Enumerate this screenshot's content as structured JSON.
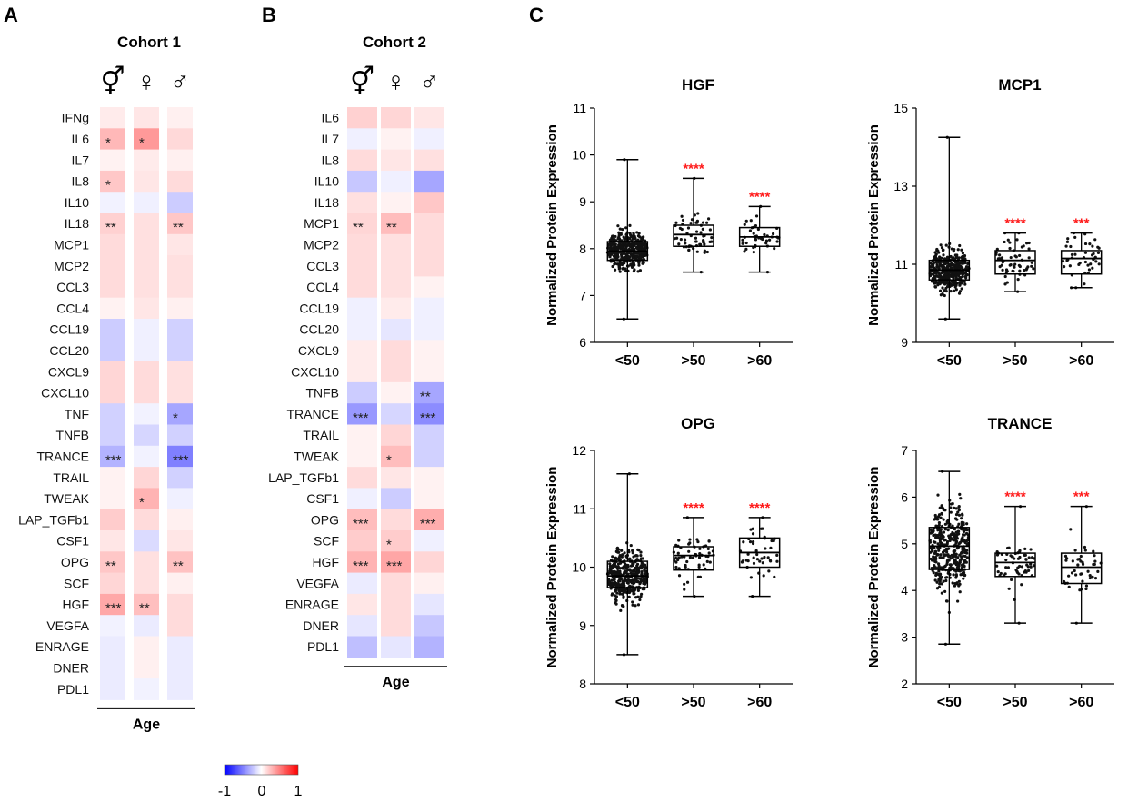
{
  "panels": [
    {
      "letter": "A"
    },
    {
      "letter": "B"
    },
    {
      "letter": "C"
    }
  ],
  "colorbar": {
    "ticks": [
      "-1",
      "0",
      "1"
    ],
    "min_color": "#0000ff",
    "mid_color": "#ffffff",
    "max_color": "#ff0000"
  },
  "chart_data": [
    {
      "type": "heatmap",
      "panel": "A",
      "title": "Cohort 1",
      "columns": [
        "⚥",
        "♀",
        "♂"
      ],
      "xlabel": "Age",
      "rows": [
        "IFNg",
        "IL6",
        "IL7",
        "IL8",
        "IL10",
        "IL18",
        "MCP1",
        "MCP2",
        "CCL3",
        "CCL4",
        "CCL19",
        "CCL20",
        "CXCL9",
        "CXCL10",
        "TNF",
        "TNFB",
        "TRANCE",
        "TRAIL",
        "TWEAK",
        "LAP_TGFb1",
        "CSF1",
        "OPG",
        "SCF",
        "HGF",
        "VEGFA",
        "ENRAGE",
        "DNER",
        "PDL1"
      ],
      "values": [
        [
          0.08,
          0.1,
          0.06
        ],
        [
          0.28,
          0.4,
          0.15
        ],
        [
          0.05,
          0.08,
          0.06
        ],
        [
          0.22,
          0.1,
          0.14
        ],
        [
          -0.05,
          -0.06,
          -0.2
        ],
        [
          0.18,
          0.12,
          0.22
        ],
        [
          0.14,
          0.12,
          0.1
        ],
        [
          0.14,
          0.12,
          0.12
        ],
        [
          0.14,
          0.12,
          0.12
        ],
        [
          0.05,
          0.1,
          0.06
        ],
        [
          -0.2,
          -0.06,
          -0.18
        ],
        [
          -0.2,
          -0.06,
          -0.18
        ],
        [
          0.16,
          0.14,
          0.12
        ],
        [
          0.16,
          0.14,
          0.12
        ],
        [
          -0.18,
          -0.05,
          -0.35
        ],
        [
          -0.18,
          -0.16,
          -0.18
        ],
        [
          -0.3,
          -0.05,
          -0.5
        ],
        [
          0.05,
          0.16,
          -0.18
        ],
        [
          0.05,
          0.3,
          -0.06
        ],
        [
          0.2,
          0.14,
          0.06
        ],
        [
          0.1,
          -0.14,
          0.1
        ],
        [
          0.22,
          0.12,
          0.24
        ],
        [
          0.16,
          0.12,
          0.06
        ],
        [
          0.34,
          0.25,
          0.14
        ],
        [
          -0.05,
          -0.08,
          0.14
        ],
        [
          -0.08,
          0.06,
          -0.08
        ],
        [
          -0.08,
          0.06,
          -0.08
        ],
        [
          -0.08,
          -0.05,
          -0.08
        ]
      ],
      "significance": [
        [
          "",
          "",
          ""
        ],
        [
          "*",
          "*",
          ""
        ],
        [
          "",
          "",
          ""
        ],
        [
          "*",
          "",
          ""
        ],
        [
          "",
          "",
          ""
        ],
        [
          "**",
          "",
          "**"
        ],
        [
          "",
          "",
          ""
        ],
        [
          "",
          "",
          ""
        ],
        [
          "",
          "",
          ""
        ],
        [
          "",
          "",
          ""
        ],
        [
          "",
          "",
          ""
        ],
        [
          "",
          "",
          ""
        ],
        [
          "",
          "",
          ""
        ],
        [
          "",
          "",
          ""
        ],
        [
          "",
          "",
          "*"
        ],
        [
          "",
          "",
          ""
        ],
        [
          "***",
          "",
          "***"
        ],
        [
          "",
          "",
          ""
        ],
        [
          "",
          "*",
          ""
        ],
        [
          "",
          "",
          ""
        ],
        [
          "",
          "",
          ""
        ],
        [
          "**",
          "",
          "**"
        ],
        [
          "",
          "",
          ""
        ],
        [
          "***",
          "**",
          ""
        ],
        [
          "",
          "",
          ""
        ],
        [
          "",
          "",
          ""
        ],
        [
          "",
          "",
          ""
        ],
        [
          "",
          "",
          ""
        ]
      ],
      "vmin": -1,
      "vmax": 1
    },
    {
      "type": "heatmap",
      "panel": "B",
      "title": "Cohort 2",
      "columns": [
        "⚥",
        "♀",
        "♂"
      ],
      "xlabel": "Age",
      "rows": [
        "IL6",
        "IL7",
        "IL8",
        "IL10",
        "IL18",
        "MCP1",
        "MCP2",
        "CCL3",
        "CCL4",
        "CCL19",
        "CCL20",
        "CXCL9",
        "CXCL10",
        "TNFB",
        "TRANCE",
        "TRAIL",
        "TWEAK",
        "LAP_TGFb1",
        "CSF1",
        "OPG",
        "SCF",
        "HGF",
        "VEGFA",
        "ENRAGE",
        "DNER",
        "PDL1"
      ],
      "values": [
        [
          0.18,
          0.16,
          0.1
        ],
        [
          -0.06,
          0.05,
          -0.06
        ],
        [
          0.14,
          0.1,
          0.12
        ],
        [
          -0.22,
          -0.06,
          -0.35
        ],
        [
          0.12,
          0.05,
          0.22
        ],
        [
          0.16,
          0.26,
          0.14
        ],
        [
          0.14,
          0.12,
          0.14
        ],
        [
          0.14,
          0.12,
          0.14
        ],
        [
          0.14,
          0.12,
          0.05
        ],
        [
          -0.06,
          0.08,
          -0.06
        ],
        [
          -0.06,
          -0.1,
          -0.06
        ],
        [
          0.08,
          0.14,
          0.05
        ],
        [
          0.08,
          0.14,
          0.05
        ],
        [
          -0.2,
          0.05,
          -0.35
        ],
        [
          -0.4,
          -0.16,
          -0.45
        ],
        [
          0.05,
          0.16,
          -0.18
        ],
        [
          0.05,
          0.26,
          -0.18
        ],
        [
          0.14,
          0.1,
          0.05
        ],
        [
          -0.06,
          -0.2,
          0.05
        ],
        [
          0.26,
          0.14,
          0.32
        ],
        [
          0.2,
          0.2,
          -0.06
        ],
        [
          0.3,
          0.35,
          0.16
        ],
        [
          -0.08,
          0.14,
          0.06
        ],
        [
          0.1,
          0.14,
          -0.1
        ],
        [
          -0.1,
          0.14,
          -0.22
        ],
        [
          -0.25,
          -0.1,
          -0.3
        ]
      ],
      "significance": [
        [
          "",
          "",
          ""
        ],
        [
          "",
          "",
          ""
        ],
        [
          "",
          "",
          ""
        ],
        [
          "",
          "",
          ""
        ],
        [
          "",
          "",
          ""
        ],
        [
          "**",
          "**",
          ""
        ],
        [
          "",
          "",
          ""
        ],
        [
          "",
          "",
          ""
        ],
        [
          "",
          "",
          ""
        ],
        [
          "",
          "",
          ""
        ],
        [
          "",
          "",
          ""
        ],
        [
          "",
          "",
          ""
        ],
        [
          "",
          "",
          ""
        ],
        [
          "",
          "",
          "**"
        ],
        [
          "***",
          "",
          "***"
        ],
        [
          "",
          "",
          ""
        ],
        [
          "",
          "*",
          ""
        ],
        [
          "",
          "",
          ""
        ],
        [
          "",
          "",
          ""
        ],
        [
          "***",
          "",
          "***"
        ],
        [
          "",
          "*",
          ""
        ],
        [
          "***",
          "***",
          ""
        ],
        [
          "",
          "",
          ""
        ],
        [
          "",
          "",
          ""
        ],
        [
          "",
          "",
          ""
        ],
        [
          "",
          "",
          ""
        ]
      ],
      "vmin": -1,
      "vmax": 1
    },
    {
      "type": "box",
      "panel": "C",
      "title": "HGF",
      "ylabel": "Normalized Protein Expression",
      "categories": [
        "<50",
        ">50",
        ">60"
      ],
      "yticks": [
        "6",
        "7",
        "8",
        "9",
        "10",
        "11"
      ],
      "ylim": [
        6,
        11
      ],
      "boxes": [
        {
          "min": 6.5,
          "q1": 7.75,
          "median": 7.95,
          "q3": 8.15,
          "max": 9.9,
          "n": 400
        },
        {
          "min": 7.5,
          "q1": 8.05,
          "median": 8.3,
          "q3": 8.5,
          "max": 9.5,
          "n": 60
        },
        {
          "min": 7.5,
          "q1": 8.05,
          "median": 8.25,
          "q3": 8.45,
          "max": 8.9,
          "n": 45
        }
      ],
      "significance": [
        "",
        "****",
        "****"
      ]
    },
    {
      "type": "box",
      "panel": "C",
      "title": "MCP1",
      "ylabel": "Normalized Protein Expression",
      "categories": [
        "<50",
        ">50",
        ">60"
      ],
      "yticks": [
        "9",
        "11",
        "13",
        "15"
      ],
      "ylim": [
        9,
        15
      ],
      "boxes": [
        {
          "min": 9.6,
          "q1": 10.6,
          "median": 10.85,
          "q3": 11.1,
          "max": 14.25,
          "n": 400
        },
        {
          "min": 10.3,
          "q1": 10.75,
          "median": 11.1,
          "q3": 11.35,
          "max": 11.8,
          "n": 60
        },
        {
          "min": 10.4,
          "q1": 10.75,
          "median": 11.15,
          "q3": 11.35,
          "max": 11.8,
          "n": 45
        }
      ],
      "significance": [
        "",
        "****",
        "***"
      ]
    },
    {
      "type": "box",
      "panel": "C",
      "title": "OPG",
      "ylabel": "Normalized Protein Expression",
      "categories": [
        "<50",
        ">50",
        ">60"
      ],
      "yticks": [
        "8",
        "9",
        "10",
        "11",
        "12"
      ],
      "ylim": [
        8,
        12
      ],
      "boxes": [
        {
          "min": 8.5,
          "q1": 9.65,
          "median": 9.85,
          "q3": 10.1,
          "max": 11.6,
          "n": 400
        },
        {
          "min": 9.5,
          "q1": 9.95,
          "median": 10.2,
          "q3": 10.35,
          "max": 10.85,
          "n": 60
        },
        {
          "min": 9.5,
          "q1": 10.0,
          "median": 10.25,
          "q3": 10.5,
          "max": 10.85,
          "n": 45
        }
      ],
      "significance": [
        "",
        "****",
        "****"
      ]
    },
    {
      "type": "box",
      "panel": "C",
      "title": "TRANCE",
      "ylabel": "Normalized Protein Expression",
      "categories": [
        "<50",
        ">50",
        ">60"
      ],
      "yticks": [
        "2",
        "3",
        "4",
        "5",
        "6",
        "7"
      ],
      "ylim": [
        2,
        7
      ],
      "boxes": [
        {
          "min": 2.85,
          "q1": 4.45,
          "median": 4.95,
          "q3": 5.35,
          "max": 6.55,
          "n": 400
        },
        {
          "min": 3.3,
          "q1": 4.3,
          "median": 4.6,
          "q3": 4.8,
          "max": 5.8,
          "n": 60
        },
        {
          "min": 3.3,
          "q1": 4.15,
          "median": 4.5,
          "q3": 4.8,
          "max": 5.8,
          "n": 45
        }
      ],
      "significance": [
        "",
        "****",
        "***"
      ]
    }
  ]
}
